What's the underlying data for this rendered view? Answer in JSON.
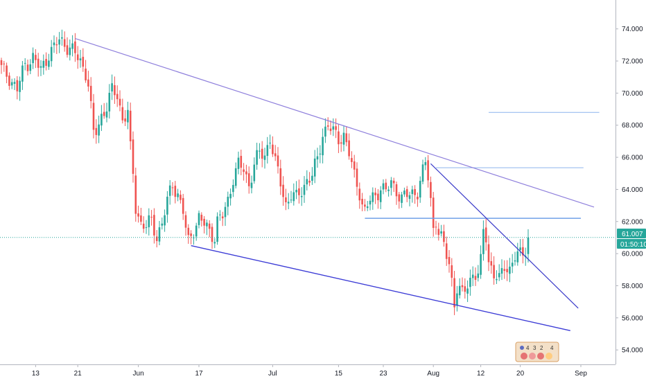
{
  "colors": {
    "up": "#26a69a",
    "down": "#ef5350",
    "channel_upper": "#8e7fdc",
    "channel_lower": "#3c3cd6",
    "wedge_line": "#3939c9",
    "horizontal_line": "#6fa0e8",
    "price_line": "#26a69a",
    "price_tag": "#26a69a",
    "timer_tag": "#26a69a",
    "axis_line": "#b2b5be"
  },
  "price_tag": {
    "price": "61.007",
    "timer": "01:50:10"
  },
  "watermark_logo": {
    "icon": "sorting-balls-logo",
    "digits": [
      "4",
      "3",
      "2",
      "4"
    ]
  },
  "chart_data": {
    "type": "candlestick",
    "y_axis": {
      "side": "right",
      "range": [
        53.1,
        75.8
      ],
      "ticks": [
        {
          "value": 54,
          "label": "54.000"
        },
        {
          "value": 56,
          "label": "56.000"
        },
        {
          "value": 58,
          "label": "58.000"
        },
        {
          "value": 60,
          "label": "60.000"
        },
        {
          "value": 62,
          "label": "62.000"
        },
        {
          "value": 64,
          "label": "64.000"
        },
        {
          "value": 66,
          "label": "66.000"
        },
        {
          "value": 68,
          "label": "68.000"
        },
        {
          "value": 70,
          "label": "70.000"
        },
        {
          "value": 72,
          "label": "72.000"
        },
        {
          "value": 74,
          "label": "74.000"
        }
      ]
    },
    "x_axis": {
      "bar_range": [
        0,
        210
      ],
      "ticks": [
        {
          "bar": 13,
          "label": "13"
        },
        {
          "bar": 29,
          "label": "21"
        },
        {
          "bar": 52,
          "label": "Jun"
        },
        {
          "bar": 75,
          "label": "17"
        },
        {
          "bar": 103,
          "label": "Jul"
        },
        {
          "bar": 128,
          "label": "15"
        },
        {
          "bar": 145,
          "label": "23"
        },
        {
          "bar": 164,
          "label": "Aug"
        },
        {
          "bar": 182,
          "label": "12"
        },
        {
          "bar": 197,
          "label": "20"
        },
        {
          "bar": 220,
          "label": "Sep"
        }
      ]
    },
    "anchors": [
      [
        0,
        71.5
      ],
      [
        3,
        71.0
      ],
      [
        6,
        70.2
      ],
      [
        9,
        71.8
      ],
      [
        12,
        72.2
      ],
      [
        15,
        71.4
      ],
      [
        18,
        72.5
      ],
      [
        20,
        72.8
      ],
      [
        22,
        73.3
      ],
      [
        24,
        73.1
      ],
      [
        26,
        72.8
      ],
      [
        28,
        72.4
      ],
      [
        30,
        72.0
      ],
      [
        32,
        71.3
      ],
      [
        33,
        70.6
      ],
      [
        35,
        67.4
      ],
      [
        36,
        67.6
      ],
      [
        38,
        68.6
      ],
      [
        40,
        69.2
      ],
      [
        42,
        70.1
      ],
      [
        44,
        69.9
      ],
      [
        46,
        68.4
      ],
      [
        48,
        68.8
      ],
      [
        49,
        66.4
      ],
      [
        50,
        64.9
      ],
      [
        51,
        62.9
      ],
      [
        53,
        61.9
      ],
      [
        55,
        61.7
      ],
      [
        57,
        62.0
      ],
      [
        59,
        61.1
      ],
      [
        61,
        61.9
      ],
      [
        63,
        63.2
      ],
      [
        65,
        64.4
      ],
      [
        67,
        63.7
      ],
      [
        69,
        62.6
      ],
      [
        70,
        61.5
      ],
      [
        71,
        60.7
      ],
      [
        73,
        61.6
      ],
      [
        75,
        62.2
      ],
      [
        77,
        61.8
      ],
      [
        79,
        61.4
      ],
      [
        81,
        61.1
      ],
      [
        82,
        62.0
      ],
      [
        84,
        62.3
      ],
      [
        86,
        63.3
      ],
      [
        88,
        64.8
      ],
      [
        90,
        65.5
      ],
      [
        92,
        65.2
      ],
      [
        94,
        64.3
      ],
      [
        96,
        65.6
      ],
      [
        98,
        66.2
      ],
      [
        100,
        66.1
      ],
      [
        102,
        67.3
      ],
      [
        104,
        65.6
      ],
      [
        106,
        64.4
      ],
      [
        108,
        63.1
      ],
      [
        110,
        63.7
      ],
      [
        112,
        63.4
      ],
      [
        114,
        64.0
      ],
      [
        116,
        64.6
      ],
      [
        118,
        64.8
      ],
      [
        120,
        65.9
      ],
      [
        122,
        67.5
      ],
      [
        124,
        68.0
      ],
      [
        126,
        67.5
      ],
      [
        128,
        67.2
      ],
      [
        130,
        67.4
      ],
      [
        132,
        66.2
      ],
      [
        134,
        64.8
      ],
      [
        136,
        63.9
      ],
      [
        137,
        63.1
      ],
      [
        138,
        62.6
      ],
      [
        140,
        63.3
      ],
      [
        142,
        63.6
      ],
      [
        144,
        64.2
      ],
      [
        146,
        63.8
      ],
      [
        148,
        64.4
      ],
      [
        150,
        64.0
      ],
      [
        152,
        63.4
      ],
      [
        154,
        63.6
      ],
      [
        156,
        63.8
      ],
      [
        158,
        63.9
      ],
      [
        160,
        65.0
      ],
      [
        161,
        65.6
      ],
      [
        162,
        64.8
      ],
      [
        163,
        63.4
      ],
      [
        164,
        61.6
      ],
      [
        165,
        62.1
      ],
      [
        166,
        61.3
      ],
      [
        168,
        60.4
      ],
      [
        170,
        59.5
      ],
      [
        171,
        58.4
      ],
      [
        172,
        56.9
      ],
      [
        173,
        57.8
      ],
      [
        175,
        57.4
      ],
      [
        177,
        58.2
      ],
      [
        179,
        58.7
      ],
      [
        181,
        58.6
      ],
      [
        182,
        59.4
      ],
      [
        183,
        61.5
      ],
      [
        184,
        61.2
      ],
      [
        185,
        59.6
      ],
      [
        187,
        58.6
      ],
      [
        189,
        58.3
      ],
      [
        191,
        59.4
      ],
      [
        193,
        59.0
      ],
      [
        195,
        59.7
      ],
      [
        197,
        60.0
      ],
      [
        199,
        60.4
      ],
      [
        200,
        61.1
      ]
    ],
    "last_price": 61.007,
    "trendlines": [
      {
        "name": "upper-channel-line",
        "from": [
          28,
          73.4
        ],
        "to": [
          225,
          62.9
        ],
        "color_key": "channel_upper",
        "width": 1.2
      },
      {
        "name": "lower-channel-line",
        "from": [
          72,
          60.5
        ],
        "to": [
          216,
          55.2
        ],
        "color_key": "channel_lower",
        "width": 1.4
      },
      {
        "name": "wedge-descending-line",
        "from": [
          163,
          65.6
        ],
        "to": [
          219,
          56.6
        ],
        "color_key": "wedge_line",
        "width": 1.2
      }
    ],
    "horizontal_lines": [
      {
        "name": "resistance-line-68",
        "price": 68.8,
        "from_bar": 185,
        "to_bar": 227,
        "width": 1,
        "opacity": 0.8
      },
      {
        "name": "resistance-line-65",
        "price": 65.35,
        "from_bar": 165,
        "to_bar": 221,
        "width": 1,
        "opacity": 0.8
      },
      {
        "name": "support-line-62",
        "price": 62.2,
        "from_bar": 138,
        "to_bar": 220,
        "width": 1.5,
        "opacity": 1
      }
    ]
  }
}
